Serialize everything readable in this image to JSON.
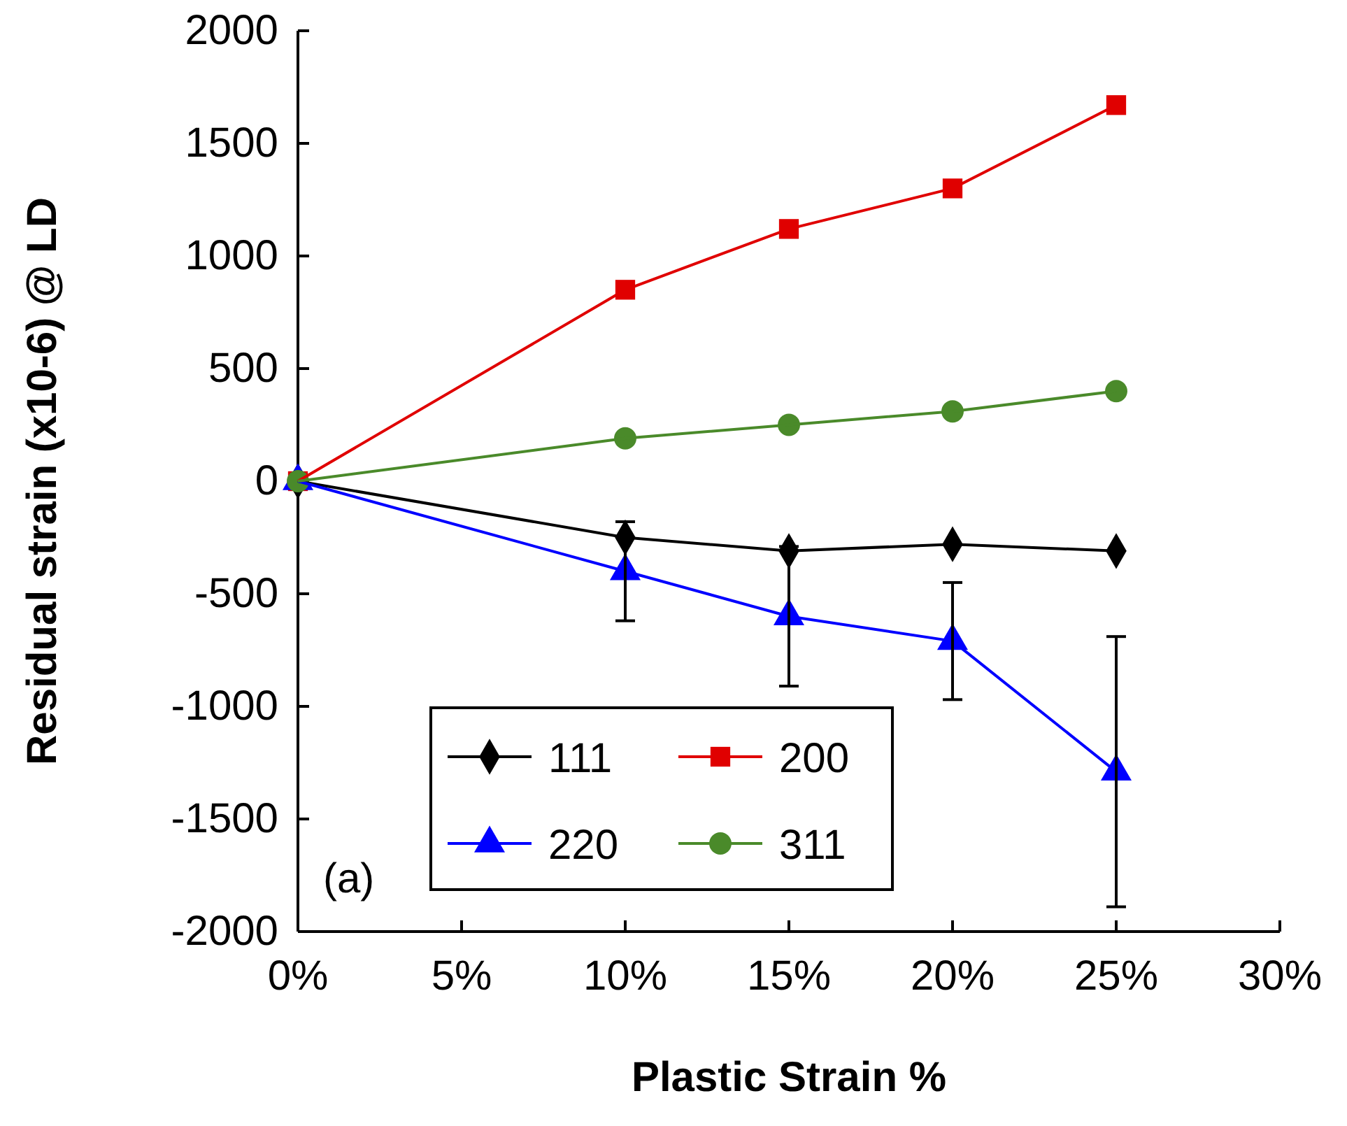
{
  "chart_data": {
    "type": "line",
    "xlabel": "Plastic Strain %",
    "ylabel": "Residual strain (x10-6) @ LD",
    "x": [
      0,
      10,
      15,
      20,
      25
    ],
    "series": [
      {
        "name": "111",
        "color": "#000000",
        "marker": "diamond",
        "values": [
          0,
          -250,
          -310,
          -280,
          -310
        ]
      },
      {
        "name": "200",
        "color": "#e00000",
        "marker": "square",
        "values": [
          0,
          850,
          1120,
          1300,
          1670
        ]
      },
      {
        "name": "220",
        "color": "#0000ff",
        "marker": "triangle",
        "values": [
          0,
          -400,
          -600,
          -710,
          -1290
        ],
        "errors": [
          null,
          220,
          310,
          260,
          600
        ]
      },
      {
        "name": "311",
        "color": "#4a8a2a",
        "marker": "circle",
        "values": [
          0,
          190,
          250,
          310,
          400
        ]
      }
    ],
    "xlim": [
      0,
      30
    ],
    "xticks": [
      {
        "value": 0,
        "label": "0%"
      },
      {
        "value": 5,
        "label": "5%"
      },
      {
        "value": 10,
        "label": "10%"
      },
      {
        "value": 15,
        "label": "15%"
      },
      {
        "value": 20,
        "label": "20%"
      },
      {
        "value": 25,
        "label": "25%"
      },
      {
        "value": 30,
        "label": "30%"
      }
    ],
    "ylim": [
      -2000,
      2000
    ],
    "yticks": [
      -2000,
      -1500,
      -1000,
      -500,
      0,
      500,
      1000,
      1500,
      2000
    ],
    "grid": false,
    "legend": "bottom left",
    "annotations": [
      "(a)"
    ]
  }
}
